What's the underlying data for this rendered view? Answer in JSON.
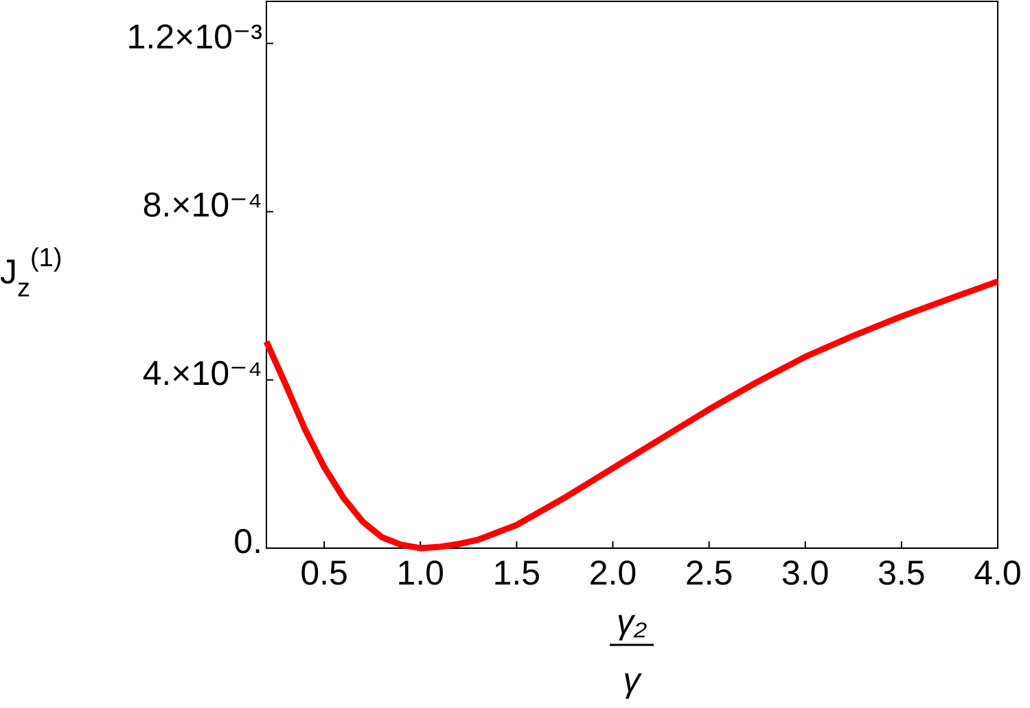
{
  "chart_data": {
    "type": "line",
    "xlabel": {
      "numerator": "γ₂",
      "denominator": "γ"
    },
    "ylabel": {
      "base": "J",
      "sub": "z",
      "sup": "(1)"
    },
    "x": [
      0.2,
      0.3,
      0.4,
      0.5,
      0.6,
      0.7,
      0.8,
      0.9,
      1.0,
      1.1,
      1.2,
      1.3,
      1.5,
      1.75,
      2.0,
      2.25,
      2.5,
      2.75,
      3.0,
      3.25,
      3.5,
      3.75,
      4.0
    ],
    "series": [
      {
        "color": "#ff0000",
        "values": [
          0.000491,
          0.000389,
          0.000283,
          0.000193,
          0.00012,
          6.3e-05,
          2.6e-05,
          8e-06,
          0,
          3e-06,
          1e-05,
          2e-05,
          5.5e-05,
          0.00012,
          0.00019,
          0.00026,
          0.00033,
          0.000395,
          0.000455,
          0.000505,
          0.000551,
          0.000593,
          0.000634
        ]
      }
    ],
    "xlim": [
      0.2,
      4.0
    ],
    "ylim": [
      0,
      0.0013
    ],
    "xticks": [
      0.5,
      {
        "value": 1,
        "label": "1.0"
      },
      1.5,
      {
        "value": 2,
        "label": "2.0"
      },
      2.5,
      {
        "value": 3,
        "label": "3.0"
      },
      3.5,
      {
        "value": 4,
        "label": "4.0"
      }
    ],
    "yticks": [
      {
        "value": 0,
        "label": "0."
      },
      {
        "value": 0.0004,
        "label": "4.×10⁻⁴"
      },
      {
        "value": 0.0008,
        "label": "8.×10⁻⁴"
      },
      {
        "value": 0.0012,
        "label": "1.2×10⁻³"
      }
    ]
  }
}
